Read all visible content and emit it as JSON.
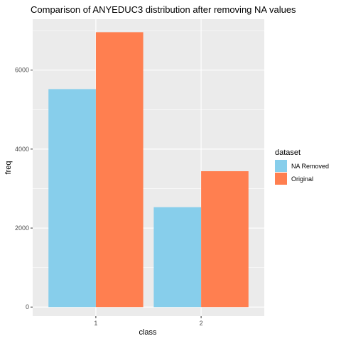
{
  "chart_data": {
    "type": "bar",
    "title": "Comparison of ANYEDUC3 distribution after removing NA values",
    "xlabel": "class",
    "ylabel": "freq",
    "categories": [
      "1",
      "2"
    ],
    "series": [
      {
        "name": "NA Removed",
        "color": "#87CEEB",
        "values": [
          5520,
          2530
        ]
      },
      {
        "name": "Original",
        "color": "#FF7F50",
        "values": [
          6960,
          3440
        ]
      }
    ],
    "ylim": [
      -230,
      7290
    ],
    "yticks": [
      0,
      2000,
      4000,
      6000
    ],
    "ytick_labels": [
      "0",
      "2000",
      "4000",
      "6000"
    ],
    "grid": true,
    "panel_background": "#EBEBEB",
    "legend": {
      "title": "dataset",
      "position": "right"
    }
  }
}
